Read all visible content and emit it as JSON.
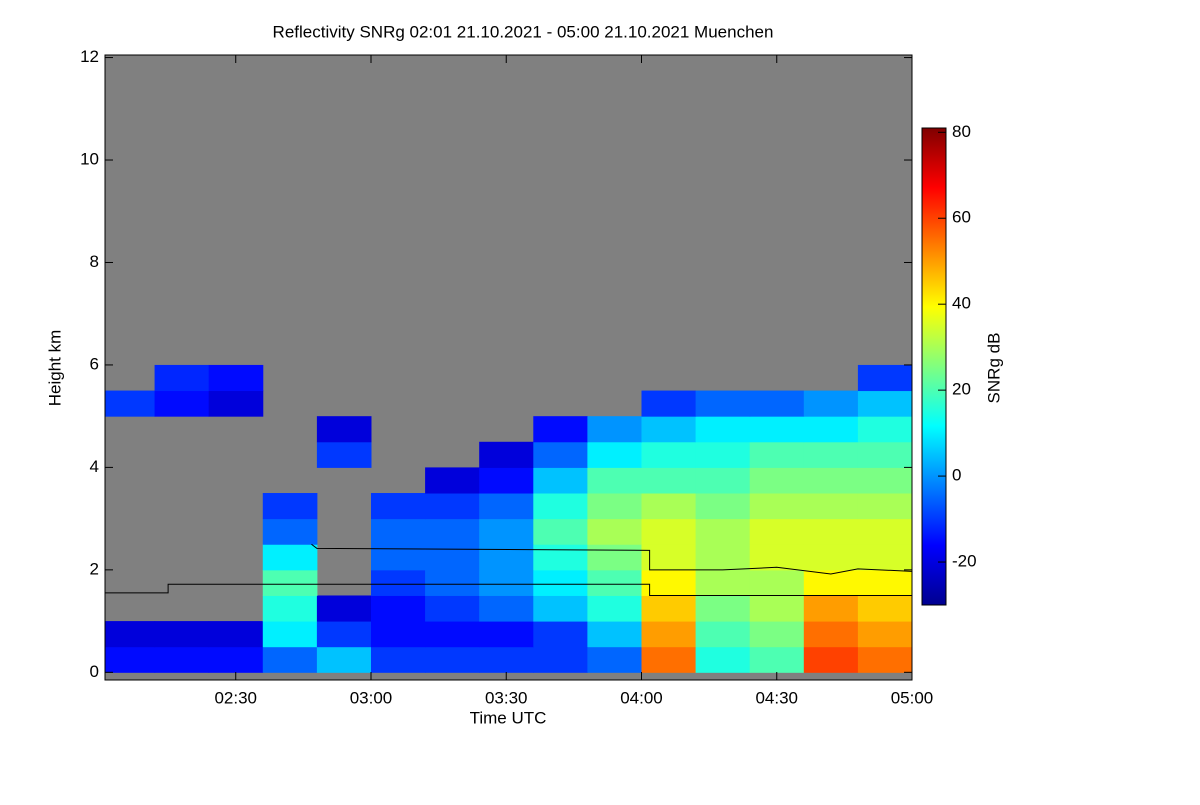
{
  "chart_data": {
    "type": "heatmap",
    "title": "Reflectivity SNRg   02:01 21.10.2021 - 05:00 21.10.2021 Muenchen",
    "xlabel": "Time UTC",
    "ylabel": "Height km",
    "colorbar_label": "SNRg dB",
    "colormap": "jet",
    "background": "#808080",
    "xlim": [
      2.0167,
      5.0
    ],
    "ylim": [
      -0.15,
      12.05
    ],
    "clim": [
      -30,
      81
    ],
    "xticks": [
      {
        "value": 2.5,
        "label": "02:30"
      },
      {
        "value": 3.0,
        "label": "03:00"
      },
      {
        "value": 3.5,
        "label": "03:30"
      },
      {
        "value": 4.0,
        "label": "04:00"
      },
      {
        "value": 4.5,
        "label": "04:30"
      },
      {
        "value": 5.0,
        "label": "05:00"
      }
    ],
    "yticks": [
      0,
      2,
      4,
      6,
      8,
      10,
      12
    ],
    "cticks": [
      -20,
      0,
      20,
      40,
      60,
      80
    ],
    "x_edges": [
      2.0167,
      2.2,
      2.4,
      2.6,
      2.8,
      3.0,
      3.2,
      3.4,
      3.6,
      3.8,
      4.0,
      4.2,
      4.4,
      4.6,
      4.8,
      5.0
    ],
    "y_edges": [
      0,
      0.5,
      1,
      1.5,
      2,
      2.5,
      3,
      3.5,
      4,
      4.5,
      5,
      5.5,
      6
    ],
    "z": [
      [
        -15,
        -15,
        -15,
        -5,
        5,
        -10,
        -10,
        -10,
        -10,
        -5,
        55,
        15,
        20,
        60,
        55
      ],
      [
        -20,
        -20,
        -20,
        10,
        -10,
        -15,
        -15,
        -15,
        -10,
        5,
        50,
        20,
        25,
        55,
        50
      ],
      [
        null,
        null,
        null,
        15,
        -20,
        -15,
        -10,
        -5,
        5,
        15,
        45,
        25,
        30,
        50,
        45
      ],
      [
        null,
        null,
        null,
        20,
        null,
        -10,
        -5,
        0,
        10,
        20,
        40,
        30,
        30,
        40,
        40
      ],
      [
        null,
        null,
        null,
        10,
        null,
        -5,
        -5,
        0,
        15,
        25,
        35,
        30,
        35,
        35,
        35
      ],
      [
        null,
        null,
        null,
        -5,
        null,
        -5,
        -5,
        0,
        20,
        30,
        35,
        30,
        35,
        35,
        35
      ],
      [
        null,
        null,
        null,
        -10,
        null,
        -10,
        -10,
        -5,
        15,
        25,
        30,
        25,
        30,
        30,
        30
      ],
      [
        null,
        null,
        null,
        null,
        null,
        null,
        -20,
        -15,
        5,
        20,
        20,
        20,
        25,
        25,
        25
      ],
      [
        null,
        null,
        null,
        null,
        -10,
        null,
        null,
        -20,
        -5,
        10,
        15,
        15,
        20,
        20,
        20
      ],
      [
        null,
        null,
        null,
        null,
        -20,
        null,
        null,
        null,
        -15,
        0,
        5,
        10,
        10,
        10,
        15
      ],
      [
        -10,
        -15,
        -20,
        null,
        null,
        null,
        null,
        null,
        null,
        null,
        -10,
        -5,
        -5,
        0,
        5
      ],
      [
        null,
        -12,
        -15,
        null,
        null,
        null,
        null,
        null,
        null,
        null,
        null,
        null,
        null,
        null,
        -10
      ]
    ],
    "series": [
      {
        "color": "#000000",
        "x": [
          2.0167,
          2.25,
          2.25,
          4.03,
          4.03,
          5.0
        ],
        "y": [
          1.55,
          1.55,
          1.72,
          1.72,
          1.5,
          1.5
        ]
      },
      {
        "color": "#000000",
        "x": [
          2.78,
          2.8,
          4.03,
          4.03,
          4.3,
          4.5,
          4.7,
          4.8,
          5.0
        ],
        "y": [
          2.5,
          2.42,
          2.38,
          2.0,
          2.0,
          2.05,
          1.92,
          2.02,
          1.97
        ]
      }
    ]
  }
}
